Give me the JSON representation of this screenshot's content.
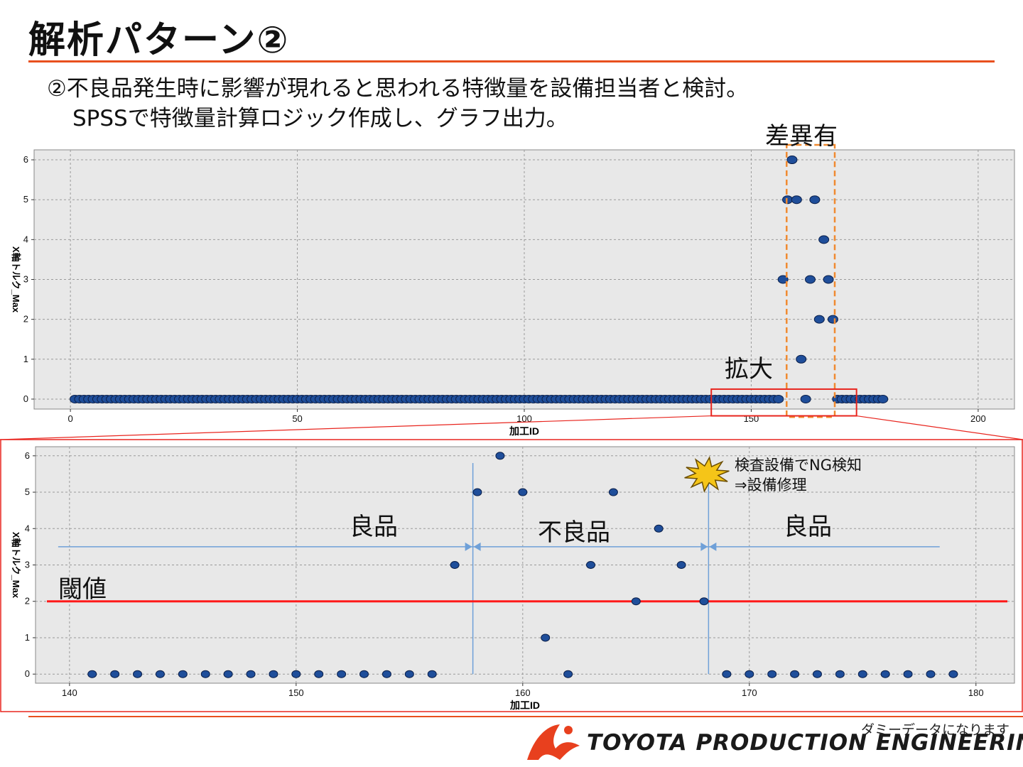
{
  "slide": {
    "title": "解析パターン②",
    "desc_line1": "②不良品発生時に影響が現れると思われる特徴量を設備担当者と検討。",
    "desc_line2": "SPSSで特徴量計算ロジック作成し、グラフ出力。"
  },
  "callouts": {
    "difference": "差異有",
    "zoom": "拡大",
    "good_left": "良品",
    "defect": "不良品",
    "good_right": "良品",
    "threshold": "閾値",
    "detect_line1": "検査設備でNG検知",
    "detect_line2": "⇒設備修理"
  },
  "footer": {
    "dummy_note": "ダミーデータになります",
    "brand": "TOYOTA PRODUCTION ENGINEERING"
  },
  "colors": {
    "accent": "#e8501e",
    "marker": "#1f4e9a",
    "plot_bg": "#e8e8e8",
    "threshold": "#ff1a1a",
    "range_arrow": "#6fa0d8",
    "highlight_box": "#e8251e",
    "dashed_box": "#f08a30"
  },
  "chart_data": [
    {
      "type": "scatter",
      "xlabel": "加工ID",
      "ylabel": "X軸トルク_Max",
      "xlim": [
        -8,
        208
      ],
      "ylim": [
        -0.25,
        6.25
      ],
      "xticks": [
        0,
        50,
        100,
        150,
        200
      ],
      "yticks": [
        0,
        1,
        2,
        3,
        4,
        5,
        6
      ],
      "grid": true,
      "x": [
        1,
        2,
        3,
        4,
        5,
        6,
        7,
        8,
        9,
        10,
        11,
        12,
        13,
        14,
        15,
        16,
        17,
        18,
        19,
        20,
        21,
        22,
        23,
        24,
        25,
        26,
        27,
        28,
        29,
        30,
        31,
        32,
        33,
        34,
        35,
        36,
        37,
        38,
        39,
        40,
        41,
        42,
        43,
        44,
        45,
        46,
        47,
        48,
        49,
        50,
        51,
        52,
        53,
        54,
        55,
        56,
        57,
        58,
        59,
        60,
        61,
        62,
        63,
        64,
        65,
        66,
        67,
        68,
        69,
        70,
        71,
        72,
        73,
        74,
        75,
        76,
        77,
        78,
        79,
        80,
        81,
        82,
        83,
        84,
        85,
        86,
        87,
        88,
        89,
        90,
        91,
        92,
        93,
        94,
        95,
        96,
        97,
        98,
        99,
        100,
        101,
        102,
        103,
        104,
        105,
        106,
        107,
        108,
        109,
        110,
        111,
        112,
        113,
        114,
        115,
        116,
        117,
        118,
        119,
        120,
        121,
        122,
        123,
        124,
        125,
        126,
        127,
        128,
        129,
        130,
        131,
        132,
        133,
        134,
        135,
        136,
        137,
        138,
        139,
        140,
        141,
        142,
        143,
        144,
        145,
        146,
        147,
        148,
        149,
        150,
        151,
        152,
        153,
        154,
        155,
        156,
        157,
        158,
        159,
        160,
        161,
        162,
        163,
        164,
        165,
        166,
        167,
        168,
        169,
        170,
        171,
        172,
        173,
        174,
        175,
        176,
        177,
        178,
        179
      ],
      "y": [
        0,
        0,
        0,
        0,
        0,
        0,
        0,
        0,
        0,
        0,
        0,
        0,
        0,
        0,
        0,
        0,
        0,
        0,
        0,
        0,
        0,
        0,
        0,
        0,
        0,
        0,
        0,
        0,
        0,
        0,
        0,
        0,
        0,
        0,
        0,
        0,
        0,
        0,
        0,
        0,
        0,
        0,
        0,
        0,
        0,
        0,
        0,
        0,
        0,
        0,
        0,
        0,
        0,
        0,
        0,
        0,
        0,
        0,
        0,
        0,
        0,
        0,
        0,
        0,
        0,
        0,
        0,
        0,
        0,
        0,
        0,
        0,
        0,
        0,
        0,
        0,
        0,
        0,
        0,
        0,
        0,
        0,
        0,
        0,
        0,
        0,
        0,
        0,
        0,
        0,
        0,
        0,
        0,
        0,
        0,
        0,
        0,
        0,
        0,
        0,
        0,
        0,
        0,
        0,
        0,
        0,
        0,
        0,
        0,
        0,
        0,
        0,
        0,
        0,
        0,
        0,
        0,
        0,
        0,
        0,
        0,
        0,
        0,
        0,
        0,
        0,
        0,
        0,
        0,
        0,
        0,
        0,
        0,
        0,
        0,
        0,
        0,
        0,
        0,
        0,
        0,
        0,
        0,
        0,
        0,
        0,
        0,
        0,
        0,
        0,
        0,
        0,
        0,
        0,
        0,
        0,
        3,
        5,
        6,
        5,
        1,
        0,
        3,
        5,
        2,
        4,
        3,
        2,
        0,
        0,
        0,
        0,
        0,
        0,
        0,
        0,
        0,
        0,
        0
      ]
    },
    {
      "type": "scatter",
      "xlabel": "加工ID",
      "ylabel": "X軸トルク_Max",
      "xlim": [
        138.5,
        181.7
      ],
      "ylim": [
        -0.25,
        6.25
      ],
      "xticks": [
        140,
        150,
        160,
        170,
        180
      ],
      "yticks": [
        0,
        1,
        2,
        3,
        4,
        5,
        6
      ],
      "grid": true,
      "threshold": 2,
      "segments": [
        157.8,
        168.2
      ],
      "x": [
        141,
        142,
        143,
        144,
        145,
        146,
        147,
        148,
        149,
        150,
        151,
        152,
        153,
        154,
        155,
        156,
        157,
        158,
        159,
        160,
        161,
        162,
        163,
        164,
        165,
        166,
        167,
        168,
        169,
        170,
        171,
        172,
        173,
        174,
        175,
        176,
        177,
        178,
        179
      ],
      "y": [
        0,
        0,
        0,
        0,
        0,
        0,
        0,
        0,
        0,
        0,
        0,
        0,
        0,
        0,
        0,
        0,
        3,
        5,
        6,
        5,
        1,
        0,
        3,
        5,
        2,
        4,
        3,
        2,
        0,
        0,
        0,
        0,
        0,
        0,
        0,
        0,
        0,
        0,
        0
      ]
    }
  ]
}
